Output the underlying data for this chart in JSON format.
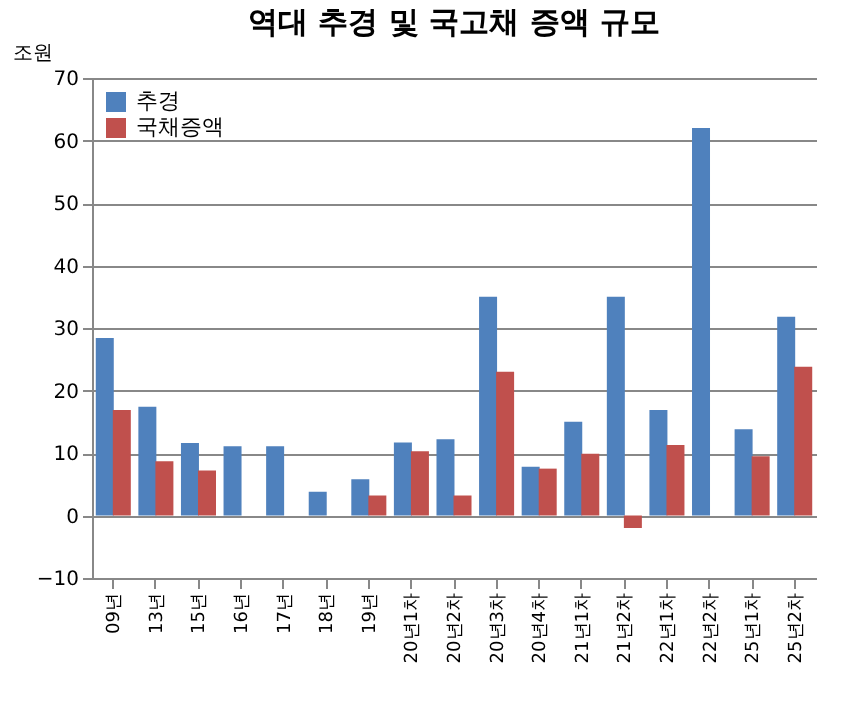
{
  "chart_data": {
    "type": "bar",
    "title": "역대 추경 및 국고채 증액 규모",
    "ylabel": "조원",
    "categories": [
      "09년",
      "13년",
      "15년",
      "16년",
      "17년",
      "18년",
      "19년",
      "20년1차",
      "20년2차",
      "20년3차",
      "20년4차",
      "21년1차",
      "21년2차",
      "22년1차",
      "22년2차",
      "25년1차",
      "25년2차"
    ],
    "series": [
      {
        "name": "추경",
        "color": "#4f81bd",
        "values": [
          28.4,
          17.4,
          11.6,
          11.1,
          11.1,
          3.8,
          5.8,
          11.7,
          12.2,
          35,
          7.8,
          15,
          35,
          16.9,
          62,
          13.8,
          31.8
        ]
      },
      {
        "name": "국채증액",
        "color": "#c0504d",
        "values": [
          16.9,
          8.7,
          7.2,
          null,
          null,
          null,
          3.2,
          10.3,
          3.2,
          23,
          7.5,
          9.9,
          -2,
          11.3,
          null,
          9.5,
          23.8
        ]
      }
    ],
    "ylim": [
      -10,
      70
    ],
    "yticks": [
      -10,
      0,
      10,
      20,
      30,
      40,
      50,
      60,
      70
    ],
    "grid": "y",
    "legend": "top left"
  }
}
